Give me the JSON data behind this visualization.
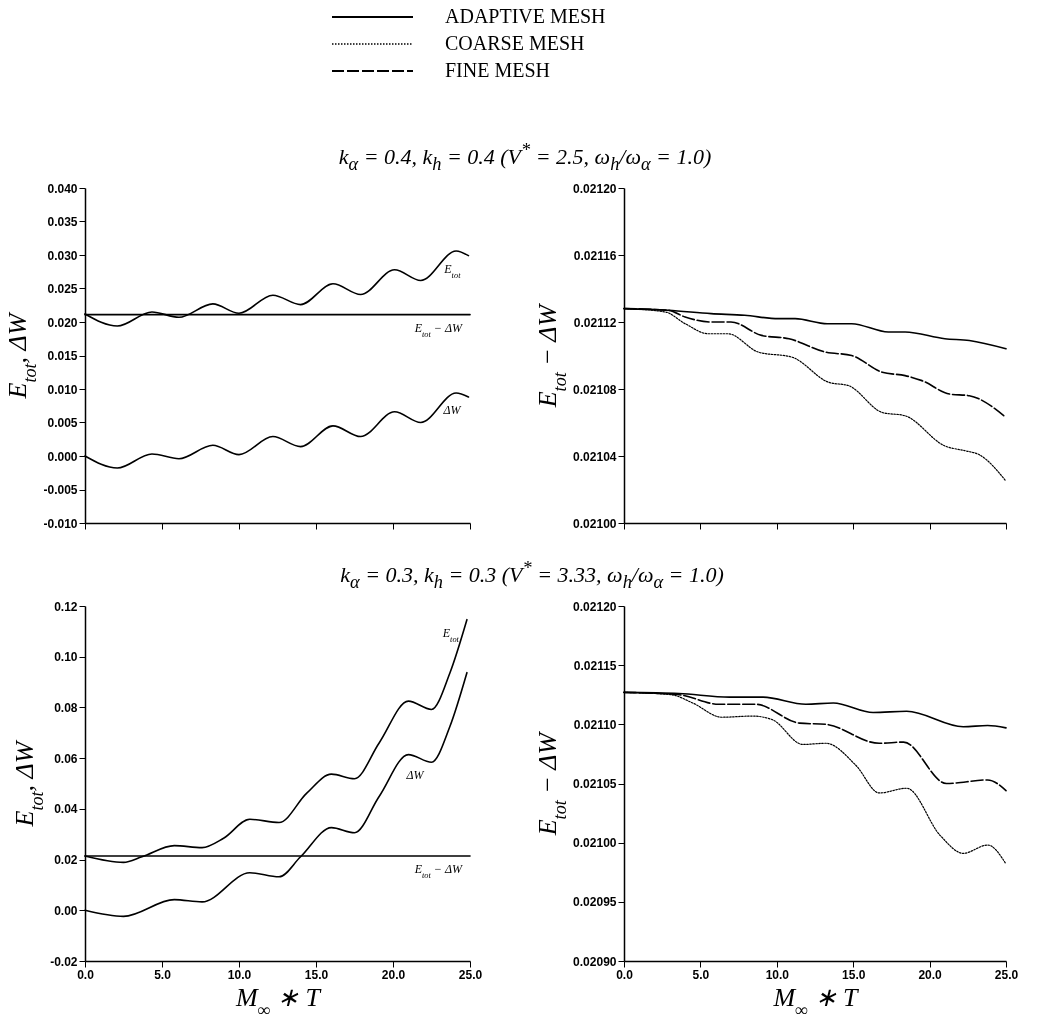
{
  "chart_data": [
    {
      "type": "line",
      "title": "k$_{α}$ = 0.4, k$_{h}$ = 0.4 (V$^{*}$ = 2.5, ω$_{h}$/ω$_{α}$ = 1.0)",
      "ylabel": "E$_{tot}$, ΔW",
      "xlim": [
        0,
        25
      ],
      "xticks": [
        0,
        5,
        10,
        15,
        20,
        25
      ],
      "tick_labels": "y",
      "ylim": [
        -0.01,
        0.04
      ],
      "yticks": [
        {
          "value": -0.01,
          "label": "-0.010"
        },
        -0.005,
        {
          "value": 0,
          "label": "0.000"
        },
        0.005,
        {
          "value": 0.01,
          "label": "0.010"
        },
        0.015,
        {
          "value": 0.02,
          "label": "0.020"
        },
        0.025,
        {
          "value": 0.03,
          "label": "0.030"
        },
        0.035,
        {
          "value": 0.04,
          "label": "0.040"
        }
      ],
      "series": [
        {
          "color": "#000000",
          "line_style": "solid",
          "x": [
            0,
            2.1,
            4.35,
            6.1,
            8.3,
            10.0,
            12.2,
            14.0,
            16.1,
            17.9,
            20.1,
            21.8,
            24.1,
            24.9
          ],
          "values": [
            0.0212,
            0.0194,
            0.0215,
            0.0207,
            0.0227,
            0.0213,
            0.024,
            0.0226,
            0.0257,
            0.0241,
            0.0278,
            0.0262,
            0.0306,
            0.0299
          ]
        },
        {
          "color": "#000000",
          "line_style": "solid",
          "x": [
            0,
            2.1,
            4.35,
            6.1,
            8.3,
            10.0,
            12.2,
            14.0,
            16.1,
            17.9,
            20.1,
            21.8,
            24.1,
            24.9
          ],
          "values": [
            0,
            -0.0018,
            0.0003,
            -0.0004,
            0.0016,
            0.0002,
            0.0029,
            0.0014,
            0.0045,
            0.0029,
            0.0066,
            0.005,
            0.0094,
            0.0088
          ]
        },
        {
          "color": "#000000",
          "line_style": "solid",
          "x": [
            0,
            25
          ],
          "values": [
            0.0211,
            0.0211
          ]
        }
      ],
      "annotations": [
        {
          "text": "E$_{tot}$",
          "x": 24.9,
          "y": 0.0299
        },
        {
          "text": "E$_{tot}$ − ΔW",
          "x": 25,
          "y": 0.0211
        },
        {
          "text": "ΔW",
          "x": 24.9,
          "y": 0.0088
        }
      ]
    },
    {
      "type": "line",
      "ylabel": "E$_{tot}$ − ΔW",
      "legend": "top",
      "xlim": [
        0,
        25
      ],
      "xticks": [
        0,
        5,
        10,
        15,
        20,
        25
      ],
      "tick_labels": "y",
      "ylim": [
        0.021,
        0.0212
      ],
      "yticks": [
        {
          "value": 0.021,
          "label": "0.02100"
        },
        0.02104,
        0.02108,
        0.02112,
        0.02116,
        {
          "value": 0.0212,
          "label": "0.02120"
        }
      ],
      "series": [
        {
          "name": "ADAPTIVE MESH",
          "color": "#000000",
          "line_style": "solid",
          "x": [
            0,
            2.9,
            5.7,
            7.9,
            10.1,
            11.2,
            13.3,
            14.9,
            17.3,
            18.4,
            21.0,
            22.6,
            25
          ],
          "values": [
            0.021128,
            0.021127,
            0.021125,
            0.021124,
            0.021122,
            0.021122,
            0.021119,
            0.021119,
            0.021114,
            0.021114,
            0.02111,
            0.021109,
            0.021104
          ]
        },
        {
          "name": "COARSE MESH",
          "color": "#000000",
          "line_style": "dotted",
          "x": [
            0,
            2.7,
            4.0,
            5.5,
            6.8,
            8.8,
            11.0,
            13.4,
            14.7,
            16.9,
            18.4,
            21.0,
            22.4,
            23.2,
            25
          ],
          "values": [
            0.021128,
            0.021126,
            0.021119,
            0.021113,
            0.021113,
            0.021102,
            0.021099,
            0.021084,
            0.021082,
            0.021066,
            0.021064,
            0.021046,
            0.021043,
            0.021041,
            0.021025
          ]
        },
        {
          "name": "FINE MESH",
          "color": "#000000",
          "line_style": "dashed",
          "x": [
            0,
            2.9,
            4.0,
            5.7,
            7.0,
            9.0,
            10.8,
            13.2,
            14.9,
            16.9,
            18.4,
            19.5,
            21.3,
            22.6,
            25
          ],
          "values": [
            0.021128,
            0.021127,
            0.021123,
            0.02112,
            0.02112,
            0.021112,
            0.02111,
            0.021102,
            0.0211,
            0.02109,
            0.021088,
            0.021085,
            0.021077,
            0.021076,
            0.021063
          ]
        }
      ]
    },
    {
      "type": "line",
      "title": "k$_{α}$ = 0.3, k$_{h}$ = 0.3 (V$^{*}$ = 3.33, ω$_{h}$/ω$_{α}$ = 1.0)",
      "xlabel": "M$_{∞}$ ∗ T",
      "ylabel": "E$_{tot}$, ΔW",
      "xlim": [
        0,
        25
      ],
      "xticks": [
        {
          "value": 0,
          "label": "0.0"
        },
        {
          "value": 5,
          "label": "5.0"
        },
        {
          "value": 10,
          "label": "10.0"
        },
        {
          "value": 15,
          "label": "15.0"
        },
        {
          "value": 20,
          "label": "20.0"
        },
        {
          "value": 25,
          "label": "25.0"
        }
      ],
      "ylim": [
        -0.02,
        0.12
      ],
      "yticks": [
        -0.02,
        {
          "value": 0,
          "label": "0.00"
        },
        0.02,
        0.04,
        0.06,
        0.08,
        {
          "value": 0.1,
          "label": "0.10"
        },
        0.12
      ],
      "series": [
        {
          "color": "#000000",
          "line_style": "solid",
          "x": [
            0,
            2.5,
            3.7,
            5.8,
            7.6,
            9.0,
            10.7,
            12.6,
            14.4,
            16.0,
            17.5,
            19.1,
            21.0,
            22.5,
            23.7,
            24.8
          ],
          "values": [
            0.0214,
            0.0189,
            0.0211,
            0.0255,
            0.0247,
            0.0284,
            0.0359,
            0.0346,
            0.0462,
            0.0537,
            0.0519,
            0.066,
            0.0825,
            0.0792,
            0.0937,
            0.1146
          ]
        },
        {
          "color": "#000000",
          "line_style": "solid",
          "x": [
            0,
            2.5,
            5.8,
            7.6,
            10.7,
            12.6,
            14.0,
            16.0,
            17.5,
            19.1,
            21.0,
            22.5,
            23.7,
            24.8
          ],
          "values": [
            0,
            -0.0024,
            0.0042,
            0.0033,
            0.0148,
            0.0132,
            0.0211,
            0.0326,
            0.0306,
            0.0449,
            0.0614,
            0.0584,
            0.0726,
            0.0937
          ]
        },
        {
          "color": "#000000",
          "line_style": "solid",
          "x": [
            0,
            25
          ],
          "values": [
            0.0214,
            0.0214
          ]
        }
      ],
      "annotations": [
        {
          "text": "E$_{tot}$",
          "x": 24.8,
          "y": 0.1146
        },
        {
          "text": "ΔW",
          "x": 22.5,
          "y": 0.0584
        },
        {
          "text": "E$_{tot}$ − ΔW",
          "x": 25,
          "y": 0.0214
        }
      ]
    },
    {
      "type": "line",
      "xlabel": "M$_{∞}$ ∗ T",
      "ylabel": "E$_{tot}$ − ΔW",
      "xlim": [
        0,
        25
      ],
      "xticks": [
        {
          "value": 0,
          "label": "0.0"
        },
        {
          "value": 5,
          "label": "5.0"
        },
        {
          "value": 10,
          "label": "10.0"
        },
        {
          "value": 15,
          "label": "15.0"
        },
        {
          "value": 20,
          "label": "20.0"
        },
        {
          "value": 25,
          "label": "25.0"
        }
      ],
      "ylim": [
        0.0209,
        0.0212
      ],
      "yticks": [
        {
          "value": 0.0209,
          "label": "0.02090"
        },
        0.02095,
        {
          "value": 0.021,
          "label": "0.02100"
        },
        0.02105,
        {
          "value": 0.0211,
          "label": "0.02110"
        },
        0.02115,
        {
          "value": 0.0212,
          "label": "0.02120"
        }
      ],
      "series": [
        {
          "color": "#000000",
          "line_style": "solid",
          "x": [
            0,
            3.6,
            6.9,
            9.1,
            11.9,
            13.7,
            16.3,
            18.5,
            22.2,
            23.8,
            25
          ],
          "values": [
            0.021127,
            0.021126,
            0.021123,
            0.021123,
            0.021117,
            0.021118,
            0.02111,
            0.021111,
            0.021098,
            0.021099,
            0.021097
          ]
        },
        {
          "color": "#000000",
          "line_style": "dotted",
          "x": [
            0,
            3.1,
            4.5,
            6.4,
            8.4,
            9.7,
            11.7,
            13.2,
            15.2,
            16.7,
            18.5,
            20.7,
            22.2,
            23.8,
            25
          ],
          "values": [
            0.021127,
            0.021125,
            0.021118,
            0.021106,
            0.021107,
            0.021104,
            0.021083,
            0.021084,
            0.021065,
            0.021042,
            0.021046,
            0.021006,
            0.020991,
            0.020998,
            0.020982
          ]
        },
        {
          "color": "#000000",
          "line_style": "dashed",
          "x": [
            0,
            3.6,
            6.2,
            8.6,
            11.5,
            13.2,
            16.7,
            18.3,
            21.1,
            23.8,
            25
          ],
          "values": [
            0.021127,
            0.021125,
            0.021117,
            0.021117,
            0.021101,
            0.0211,
            0.021084,
            0.021085,
            0.02105,
            0.021053,
            0.021044
          ]
        }
      ]
    }
  ]
}
